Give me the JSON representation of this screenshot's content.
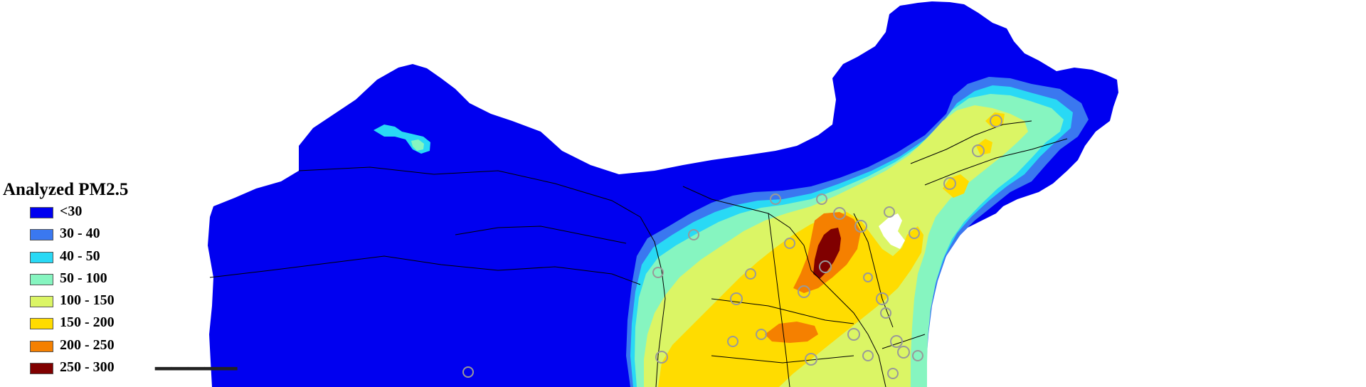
{
  "legend": {
    "title": "Analyzed PM2.5",
    "items": [
      {
        "label": "<30",
        "color": "#0000f0"
      },
      {
        "label": "30 - 40",
        "color": "#3a78f0"
      },
      {
        "label": "40 - 50",
        "color": "#29d9f5"
      },
      {
        "label": "50 - 100",
        "color": "#86f5c0"
      },
      {
        "label": "100 - 150",
        "color": "#dbf565"
      },
      {
        "label": "150 - 200",
        "color": "#ffdc00"
      },
      {
        "label": "200 - 250",
        "color": "#f58000"
      },
      {
        "label": "250 - 300",
        "color": "#800000"
      }
    ]
  },
  "map": {
    "variable": "PM2.5",
    "colors": {
      "background": "#ffffff",
      "boundary": "#000000",
      "station_marker": "#999999"
    }
  }
}
